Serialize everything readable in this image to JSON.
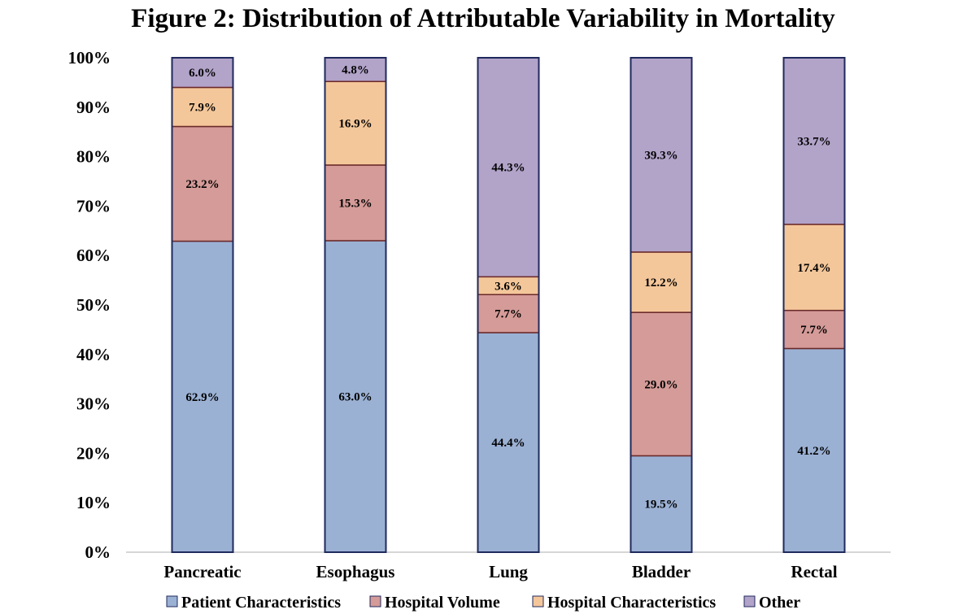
{
  "chart_data": {
    "type": "bar",
    "stacked": true,
    "title": "Figure 2: Distribution of Attributable Variability in Mortality",
    "categories": [
      "Pancreatic",
      "Esophagus",
      "Lung",
      "Bladder",
      "Rectal"
    ],
    "y_ticks": [
      "0%",
      "10%",
      "20%",
      "30%",
      "40%",
      "50%",
      "60%",
      "70%",
      "80%",
      "90%",
      "100%"
    ],
    "ylim": [
      0,
      100
    ],
    "xlabel": "",
    "ylabel": "",
    "legend_position": "bottom",
    "series": [
      {
        "name": "Patient Characteristics",
        "color": "#9BB1D4",
        "values": [
          62.9,
          63.0,
          44.4,
          19.5,
          41.2
        ],
        "labels": [
          "62.9%",
          "63.0%",
          "44.4%",
          "19.5%",
          "41.2%"
        ]
      },
      {
        "name": "Hospital Volume",
        "color": "#D49B98",
        "values": [
          23.2,
          15.3,
          7.7,
          29.0,
          7.7
        ],
        "labels": [
          "23.2%",
          "15.3%",
          "7.7%",
          "29.0%",
          "7.7%"
        ]
      },
      {
        "name": "Hospital Characteristics",
        "color": "#F4C79A",
        "values": [
          7.9,
          16.9,
          3.6,
          12.2,
          17.4
        ],
        "labels": [
          "7.9%",
          "16.9%",
          "3.6%",
          "12.2%",
          "17.4%"
        ]
      },
      {
        "name": "Other",
        "color": "#B2A3C9",
        "values": [
          6.0,
          4.8,
          44.3,
          39.3,
          33.7
        ],
        "labels": [
          "6.0%",
          "4.8%",
          "44.3%",
          "39.3%",
          "33.7%"
        ]
      }
    ]
  }
}
